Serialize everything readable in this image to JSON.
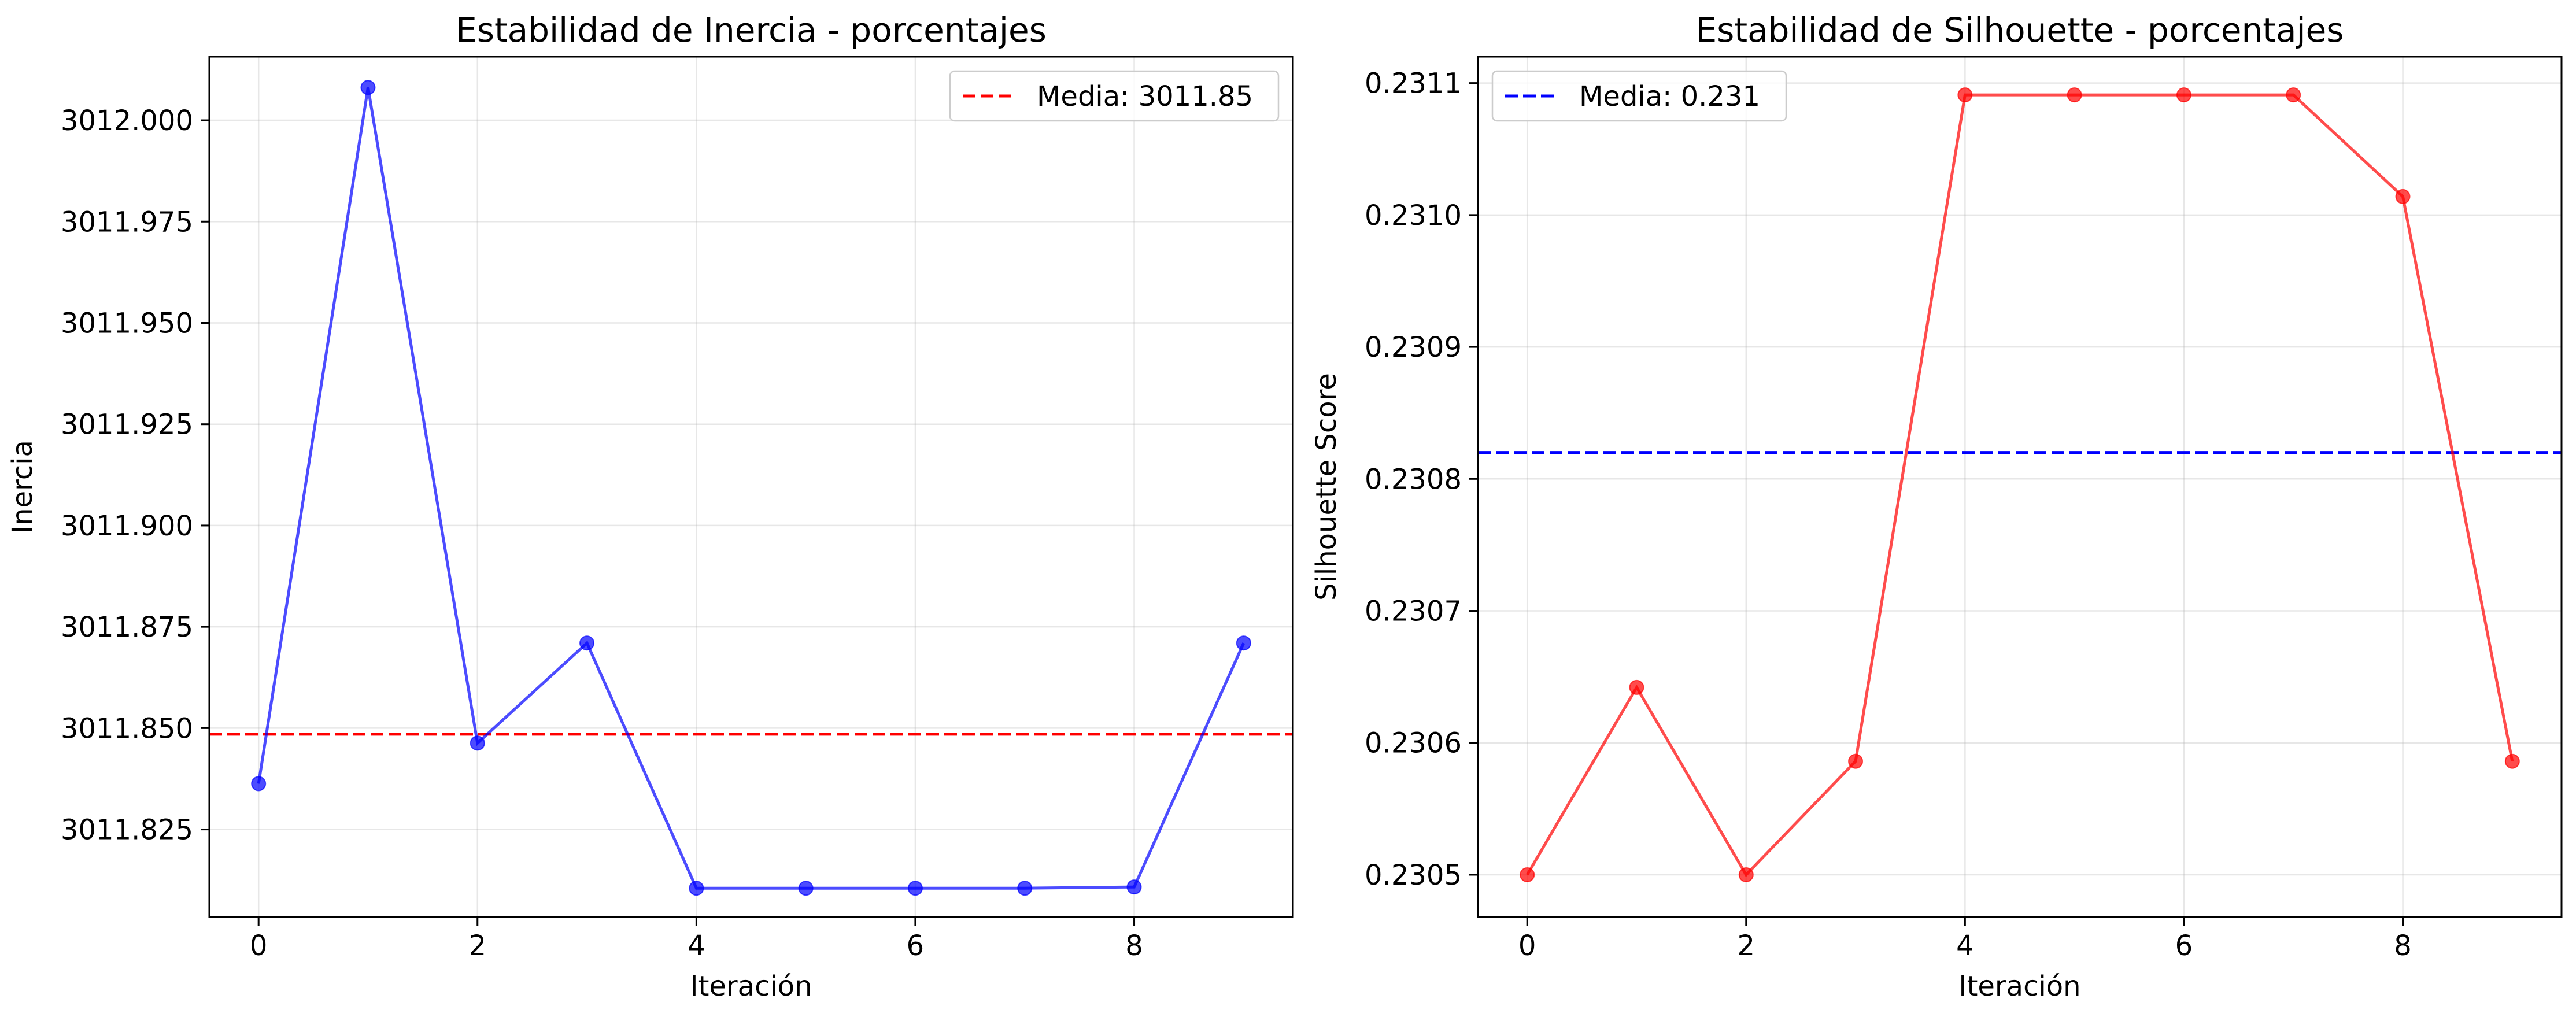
{
  "chart_data": [
    {
      "type": "line",
      "title": "Estabilidad de Inercia - porcentajes",
      "xlabel": "Iteración",
      "ylabel": "Inercia",
      "xlim": [
        -0.45,
        9.45
      ],
      "ylim": [
        3011.8034,
        3012.0157
      ],
      "xticks": [
        0,
        2,
        4,
        6,
        8
      ],
      "yticks": [
        3011.825,
        3011.85,
        3011.875,
        3011.9,
        3011.925,
        3011.95,
        3011.975,
        3012.0
      ],
      "ytick_labels": [
        "3011.825",
        "3011.850",
        "3011.875",
        "3011.900",
        "3011.925",
        "3011.950",
        "3011.975",
        "3012.000"
      ],
      "grid": true,
      "legend_position": "upper right",
      "series": [
        {
          "color": "#0000ff",
          "x": [
            0,
            1,
            2,
            3,
            4,
            5,
            6,
            7,
            8,
            9
          ],
          "values": [
            3011.8363,
            3012.0081,
            3011.8463,
            3011.871,
            3011.8105,
            3011.8105,
            3011.8105,
            3011.8105,
            3011.8108,
            3011.871
          ]
        }
      ],
      "mean_line": {
        "label": "Media: 3011.85",
        "value": 3011.8485,
        "color": "#ff0000"
      }
    },
    {
      "type": "line",
      "title": "Estabilidad de Silhouette - porcentajes",
      "xlabel": "Iteración",
      "ylabel": "Silhouette Score",
      "xlim": [
        -0.45,
        9.45
      ],
      "ylim": [
        0.230468,
        0.23112
      ],
      "xticks": [
        0,
        2,
        4,
        6,
        8
      ],
      "yticks": [
        0.2305,
        0.2306,
        0.2307,
        0.2308,
        0.2309,
        0.231,
        0.2311
      ],
      "ytick_labels": [
        "0.2305",
        "0.2306",
        "0.2307",
        "0.2308",
        "0.2309",
        "0.2310",
        "0.2311"
      ],
      "grid": true,
      "legend_position": "upper left",
      "series": [
        {
          "color": "#ff0000",
          "x": [
            0,
            1,
            2,
            3,
            4,
            5,
            6,
            7,
            8,
            9
          ],
          "values": [
            0.2305,
            0.230642,
            0.2305,
            0.230586,
            0.231091,
            0.231091,
            0.231091,
            0.231091,
            0.231014,
            0.230586
          ]
        }
      ],
      "mean_line": {
        "label": "Media: 0.231",
        "value": 0.23082,
        "color": "#0000ff"
      }
    }
  ]
}
